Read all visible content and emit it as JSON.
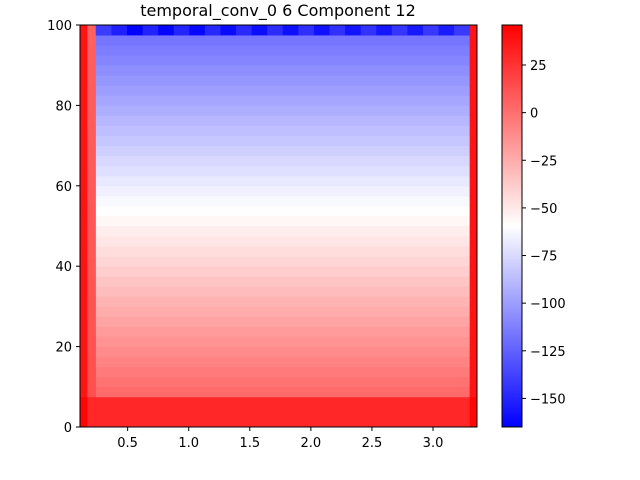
{
  "chart_data": {
    "type": "heatmap",
    "title": "temporal_conv_0 6 Component 12",
    "xlabel": "",
    "ylabel": "",
    "xlim": [
      0.11,
      3.36
    ],
    "ylim": [
      0,
      100
    ],
    "x_ticks": [
      "0.5",
      "1.0",
      "1.5",
      "2.0",
      "2.5",
      "3.0"
    ],
    "x_tick_values": [
      0.5,
      1.0,
      1.5,
      2.0,
      2.5,
      3.0
    ],
    "y_ticks": [
      "0",
      "20",
      "40",
      "60",
      "80",
      "100"
    ],
    "y_tick_values": [
      0,
      20,
      40,
      60,
      80,
      100
    ],
    "colormap": "bwr",
    "colorbar": {
      "min": -165,
      "max": 46,
      "ticks": [
        "25",
        "0",
        "−25",
        "−50",
        "−75",
        "−100",
        "−125",
        "−150"
      ],
      "tick_values": [
        25,
        0,
        -25,
        -50,
        -75,
        -100,
        -125,
        -150
      ],
      "colors": [
        "#0000ff",
        "#ffffff",
        "#ff0000"
      ]
    },
    "column_edges": [
      0.11,
      0.17,
      0.24,
      3.3,
      3.36
    ],
    "row_step": 2.5,
    "grid": false,
    "legend": "none"
  }
}
